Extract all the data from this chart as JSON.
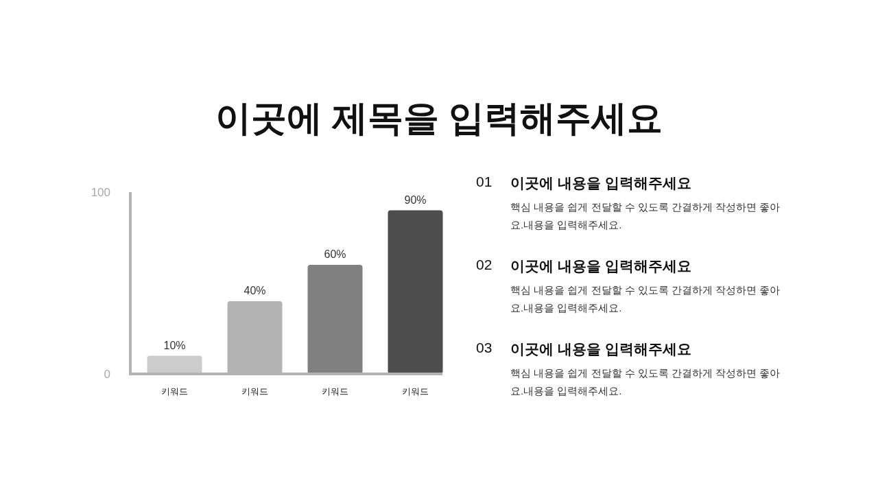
{
  "chart_data": {
    "type": "bar",
    "title": "이곳에 제목을 입력해주세요",
    "categories": [
      "키워드",
      "키워드",
      "키워드",
      "키워드"
    ],
    "values": [
      10,
      40,
      60,
      90
    ],
    "value_labels": [
      "10%",
      "40%",
      "60%",
      "90%"
    ],
    "colors": [
      "#cccccc",
      "#b3b3b3",
      "#808080",
      "#4d4d4d"
    ],
    "ylim": [
      0,
      100
    ],
    "yticks": [
      0,
      100
    ],
    "grid": false,
    "annotations": [
      "01",
      "이곳에 내용을 입력해주세요",
      "핵심 내용을 쉽게 전달할 수 있도록 간결하게 작성하면 좋아요.내용을 입력해주세요.",
      "02",
      "이곳에 내용을 입력해주세요",
      "핵심 내용을 쉽게 전달할 수 있도록 간결하게 작성하면 좋아요.내용을 입력해주세요.",
      "03",
      "이곳에 내용을 입력해주세요",
      "핵심 내용을 쉽게 전달할 수 있도록 간결하게 작성하면 좋아요.내용을 입력해주세요."
    ]
  }
}
